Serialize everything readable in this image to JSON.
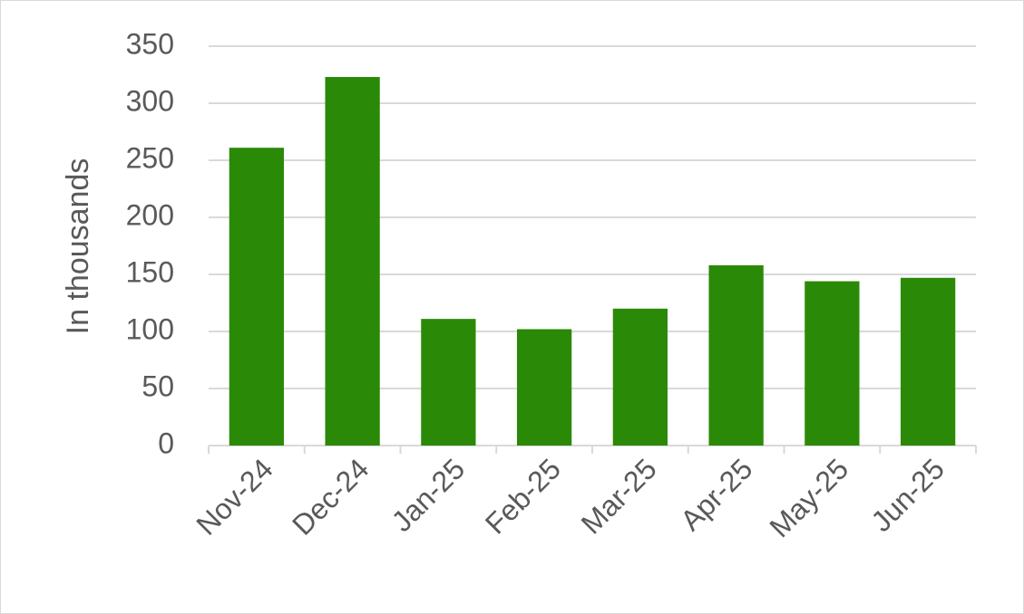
{
  "chart_data": {
    "type": "bar",
    "y_label": "In thousands",
    "categories": [
      "Nov-24",
      "Dec-24",
      "Jan-25",
      "Feb-25",
      "Mar-25",
      "Apr-25",
      "May-25",
      "Jun-25"
    ],
    "values": [
      261,
      323,
      111,
      102,
      120,
      158,
      144,
      147
    ],
    "color": "#2a8a07",
    "ylim": [
      0,
      350
    ],
    "yticks": [
      0,
      50,
      100,
      150,
      200,
      250,
      300,
      350
    ],
    "grid": true
  }
}
